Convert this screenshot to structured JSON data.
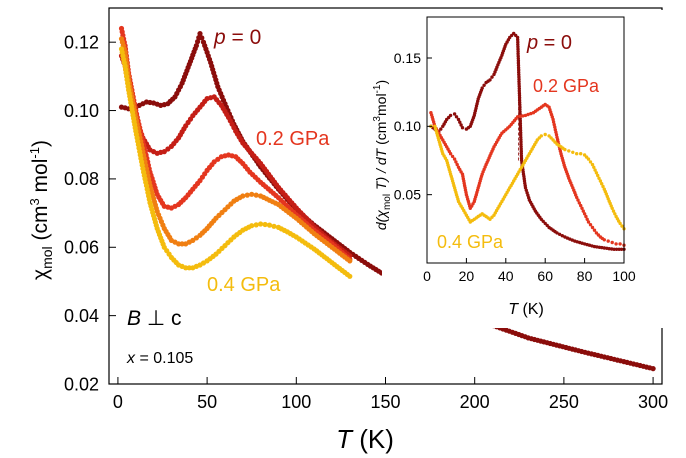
{
  "colors": {
    "p0": "#8b0d0b",
    "p02": "#e4361f",
    "p04": "#f4bc0e",
    "mid1": "#c41e16",
    "mid2": "#f07f12"
  },
  "chart_data": [
    {
      "type": "scatter",
      "xlabel": {
        "italic": "T",
        "unit": " (K)"
      },
      "ylabel": {
        "sym": "χ",
        "sub": "mol",
        "unit1": " (cm",
        "sup1": "3",
        "unit2": " mol",
        "sup2": "-1",
        "unit3": ")"
      },
      "xlim": [
        -5,
        305
      ],
      "ylim": [
        0.02,
        0.13
      ],
      "xticks": [
        0,
        50,
        100,
        150,
        200,
        250,
        300
      ],
      "yticks": [
        0.02,
        0.04,
        0.06,
        0.08,
        0.1,
        0.12
      ],
      "ytick_labels": [
        "0.02",
        "0.04",
        "0.06",
        "0.08",
        "0.10",
        "0.12"
      ],
      "annotations": {
        "p0": {
          "italic": "p",
          "rest": " = 0"
        },
        "p02": "0.2 GPa",
        "p04": "0.4 GPa",
        "field": {
          "italic": "B",
          "rest": " ⊥ c"
        },
        "x": {
          "italic": "x",
          "rest": " = 0.105"
        }
      },
      "series": [
        {
          "key": "p0",
          "color": "#8b0d0b",
          "x": [
            2,
            4,
            8,
            12,
            16,
            20,
            24,
            28,
            32,
            36,
            40,
            44,
            46,
            48,
            52,
            56,
            60,
            65,
            70,
            80,
            90,
            100,
            110,
            120,
            130,
            140,
            160,
            180,
            200,
            230,
            260,
            300
          ],
          "y": [
            0.101,
            0.1008,
            0.1002,
            0.1015,
            0.1025,
            0.1022,
            0.1015,
            0.102,
            0.104,
            0.108,
            0.1135,
            0.119,
            0.1225,
            0.12,
            0.114,
            0.107,
            0.102,
            0.096,
            0.091,
            0.0835,
            0.077,
            0.071,
            0.0665,
            0.0625,
            0.0585,
            0.055,
            0.0485,
            0.0435,
            0.039,
            0.0335,
            0.0295,
            0.0245
          ]
        },
        {
          "key": "mid1",
          "color": "#c41e16",
          "x": [
            2,
            4,
            6,
            10,
            14,
            18,
            22,
            26,
            30,
            34,
            38,
            42,
            46,
            50,
            54,
            58,
            62,
            66,
            70,
            80,
            90,
            100,
            110,
            120,
            130
          ],
          "y": [
            0.116,
            0.113,
            0.107,
            0.098,
            0.092,
            0.0885,
            0.0875,
            0.088,
            0.0895,
            0.092,
            0.0955,
            0.0985,
            0.101,
            0.1035,
            0.104,
            0.1015,
            0.098,
            0.094,
            0.0905,
            0.0845,
            0.0775,
            0.0715,
            0.066,
            0.0615,
            0.0575
          ]
        },
        {
          "key": "p02",
          "color": "#e4361f",
          "x": [
            2,
            4,
            6,
            10,
            14,
            18,
            22,
            26,
            30,
            34,
            38,
            42,
            46,
            50,
            54,
            58,
            62,
            66,
            70,
            74,
            80,
            90,
            100,
            110,
            120,
            130
          ],
          "y": [
            0.124,
            0.119,
            0.111,
            0.1,
            0.091,
            0.082,
            0.0755,
            0.072,
            0.0715,
            0.0725,
            0.0745,
            0.077,
            0.0795,
            0.0825,
            0.085,
            0.0865,
            0.087,
            0.0865,
            0.0845,
            0.082,
            0.079,
            0.0745,
            0.0695,
            0.065,
            0.061,
            0.0565
          ]
        },
        {
          "key": "mid2",
          "color": "#f07f12",
          "x": [
            2,
            4,
            6,
            10,
            14,
            18,
            22,
            26,
            30,
            34,
            38,
            42,
            46,
            50,
            55,
            60,
            65,
            70,
            75,
            80,
            90,
            100,
            110,
            120,
            130
          ],
          "y": [
            0.121,
            0.117,
            0.109,
            0.098,
            0.088,
            0.078,
            0.0705,
            0.0655,
            0.062,
            0.061,
            0.061,
            0.062,
            0.0635,
            0.0655,
            0.0685,
            0.071,
            0.0735,
            0.075,
            0.0755,
            0.075,
            0.0725,
            0.0685,
            0.064,
            0.06,
            0.056
          ]
        },
        {
          "key": "p04",
          "color": "#f4bc0e",
          "x": [
            2,
            4,
            6,
            10,
            14,
            18,
            22,
            26,
            30,
            34,
            38,
            42,
            46,
            50,
            55,
            60,
            65,
            70,
            75,
            80,
            85,
            90,
            95,
            100,
            110,
            120,
            130
          ],
          "y": [
            0.118,
            0.113,
            0.106,
            0.094,
            0.083,
            0.073,
            0.0655,
            0.06,
            0.057,
            0.0548,
            0.054,
            0.054,
            0.0548,
            0.056,
            0.058,
            0.0605,
            0.063,
            0.065,
            0.0663,
            0.0668,
            0.0665,
            0.0658,
            0.0645,
            0.063,
            0.0595,
            0.0555,
            0.0515
          ]
        }
      ]
    },
    {
      "type": "scatter",
      "xlabel": {
        "italic": "T",
        "unit": " (K)"
      },
      "ylabel": {
        "pre": "d(",
        "sym": "χ",
        "sub": "mol",
        "mid": " T) / d",
        "italicT": "T",
        "unit1": " (cm",
        "sup1": "3",
        "unit2": "mol",
        "sup2": "-1",
        "unit3": ")"
      },
      "xlim": [
        0,
        100
      ],
      "ylim": [
        0,
        0.18
      ],
      "xticks": [
        0,
        20,
        40,
        60,
        80,
        100
      ],
      "yticks": [
        0.05,
        0.1,
        0.15
      ],
      "ytick_labels": [
        "0.05",
        "0.10",
        "0.15"
      ],
      "annotations": {
        "p0": {
          "italic": "p",
          "rest": " = 0"
        },
        "p02": "0.2 GPa",
        "p04": "0.4 GPa"
      },
      "series": [
        {
          "key": "p0",
          "color": "#8b0d0b",
          "x": [
            2,
            4,
            6,
            8,
            10,
            12,
            14,
            16,
            18,
            20,
            22,
            24,
            26,
            28,
            30,
            32,
            34,
            36,
            38,
            40,
            42,
            44,
            46,
            48,
            50,
            52,
            55,
            58,
            62,
            66,
            70,
            75,
            80,
            85,
            90,
            95,
            100
          ],
          "y": [
            0.1,
            0.098,
            0.096,
            0.1,
            0.105,
            0.108,
            0.109,
            0.105,
            0.099,
            0.098,
            0.1,
            0.108,
            0.12,
            0.128,
            0.132,
            0.134,
            0.138,
            0.145,
            0.152,
            0.16,
            0.165,
            0.168,
            0.165,
            0.075,
            0.055,
            0.046,
            0.038,
            0.032,
            0.026,
            0.022,
            0.019,
            0.016,
            0.014,
            0.012,
            0.011,
            0.01,
            0.01
          ]
        },
        {
          "key": "p02",
          "color": "#e4361f",
          "x": [
            2,
            4,
            6,
            8,
            10,
            12,
            14,
            16,
            18,
            20,
            22,
            24,
            26,
            28,
            30,
            34,
            38,
            42,
            46,
            50,
            54,
            58,
            60,
            62,
            64,
            66,
            68,
            70,
            72,
            74,
            76,
            78,
            80,
            82,
            84,
            86,
            88,
            90,
            92,
            94,
            96,
            98,
            100
          ],
          "y": [
            0.11,
            0.1,
            0.095,
            0.09,
            0.085,
            0.08,
            0.076,
            0.07,
            0.065,
            0.05,
            0.04,
            0.045,
            0.055,
            0.065,
            0.072,
            0.085,
            0.095,
            0.1,
            0.107,
            0.108,
            0.11,
            0.114,
            0.116,
            0.114,
            0.105,
            0.092,
            0.08,
            0.07,
            0.062,
            0.055,
            0.048,
            0.042,
            0.036,
            0.03,
            0.026,
            0.022,
            0.019,
            0.017,
            0.016,
            0.015,
            0.014,
            0.014,
            0.013
          ]
        },
        {
          "key": "p04",
          "color": "#f4bc0e",
          "x": [
            2,
            4,
            6,
            8,
            10,
            12,
            14,
            16,
            18,
            20,
            22,
            24,
            26,
            28,
            30,
            32,
            34,
            36,
            38,
            40,
            42,
            44,
            46,
            48,
            50,
            52,
            54,
            56,
            58,
            60,
            62,
            64,
            66,
            68,
            70,
            72,
            74,
            76,
            78,
            80,
            82,
            84,
            86,
            88,
            90,
            92,
            94,
            96,
            98,
            100
          ],
          "y": [
            0.1,
            0.1,
            0.09,
            0.08,
            0.075,
            0.065,
            0.055,
            0.045,
            0.04,
            0.035,
            0.03,
            0.032,
            0.034,
            0.036,
            0.034,
            0.032,
            0.035,
            0.04,
            0.045,
            0.05,
            0.055,
            0.06,
            0.065,
            0.07,
            0.075,
            0.08,
            0.085,
            0.09,
            0.093,
            0.094,
            0.093,
            0.09,
            0.087,
            0.085,
            0.083,
            0.082,
            0.081,
            0.08,
            0.08,
            0.079,
            0.076,
            0.072,
            0.066,
            0.06,
            0.054,
            0.047,
            0.04,
            0.034,
            0.029,
            0.025
          ]
        }
      ]
    }
  ]
}
